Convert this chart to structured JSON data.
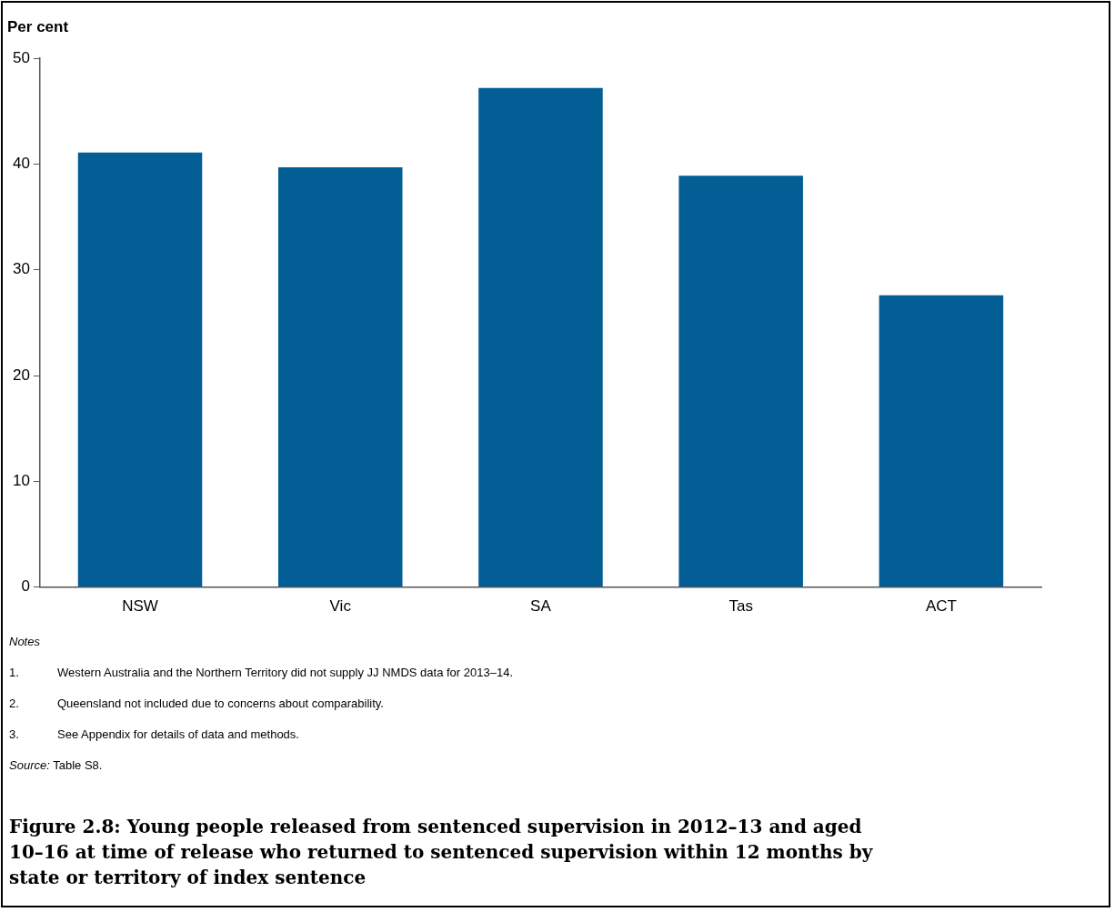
{
  "chart_data": {
    "type": "bar",
    "title": "Figure 2.8: Young people released from sentenced supervision in 2012–13 and aged 10–16 at time of release who returned to sentenced supervision within 12 months by state or territory of index sentence",
    "ylabel": "Per cent",
    "categories": [
      "NSW",
      "Vic",
      "SA",
      "Tas",
      "ACT"
    ],
    "values": [
      41.1,
      39.7,
      47.2,
      38.9,
      27.6
    ],
    "color": "#025e95",
    "ylim": [
      0,
      50
    ],
    "yticks": [
      0,
      10,
      20,
      30,
      40,
      50
    ],
    "grid": false,
    "legend": false,
    "annotations": [
      "Notes",
      "1. Western Australia and the Northern Territory did not supply JJ NMDS data for 2013–14.",
      "2. Queensland not included due to concerns about comparability.",
      "3. See Appendix for details of data and methods.",
      "Source: Table S8."
    ]
  }
}
